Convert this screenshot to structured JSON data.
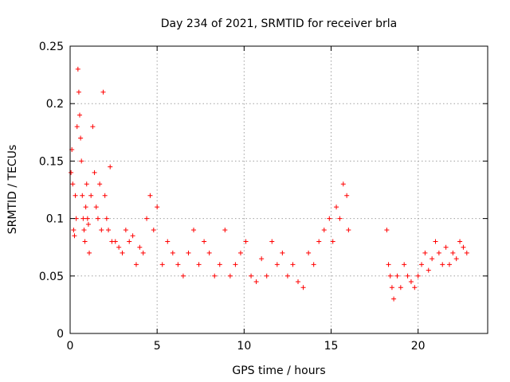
{
  "chart_data": {
    "type": "scatter",
    "title": "Day 234 of 2021, SRMTID for receiver brla",
    "xlabel": "GPS time / hours",
    "ylabel": "SRMTID / TECUs",
    "xlim": [
      0,
      24
    ],
    "ylim": [
      0,
      0.25
    ],
    "xticks": [
      "0",
      "5",
      "10",
      "15",
      "20"
    ],
    "yticks": [
      "0",
      "0.05",
      "0.1",
      "0.15",
      "0.2",
      "0.25"
    ],
    "grid": true,
    "legend": "none",
    "color": "#ff0000",
    "series": [
      {
        "x": [
          0.05,
          0.1,
          0.15,
          0.2,
          0.25,
          0.3,
          0.35,
          0.4,
          0.45,
          0.5,
          0.55,
          0.6,
          0.65,
          0.7,
          0.75,
          0.8,
          0.85,
          0.9,
          0.95,
          1.0,
          1.05,
          1.1,
          1.2,
          1.3,
          1.4,
          1.5,
          1.6,
          1.7,
          1.8,
          1.9,
          2.0,
          2.1,
          2.2,
          2.3,
          2.4,
          2.6,
          2.8,
          3.0,
          3.2,
          3.4,
          3.6,
          3.8,
          4.0,
          4.2,
          4.4,
          4.6,
          4.8,
          5.0,
          5.3,
          5.6,
          5.9,
          6.2,
          6.5,
          6.8,
          7.1,
          7.4,
          7.7,
          8.0,
          8.3,
          8.6,
          8.9,
          9.2,
          9.5,
          9.8,
          10.1,
          10.4,
          10.7,
          11.0,
          11.3,
          11.6,
          11.9,
          12.2,
          12.5,
          12.8,
          13.1,
          13.4,
          13.7,
          14.0,
          14.3,
          14.6,
          14.9,
          15.1,
          15.3,
          15.5,
          15.7,
          15.9,
          16.0,
          18.2,
          18.3,
          18.4,
          18.5,
          18.6,
          18.8,
          19.0,
          19.2,
          19.4,
          19.6,
          19.8,
          20.0,
          20.2,
          20.4,
          20.6,
          20.8,
          21.0,
          21.2,
          21.4,
          21.6,
          21.8,
          22.0,
          22.2,
          22.4,
          22.6,
          22.8
        ],
        "y": [
          0.14,
          0.16,
          0.13,
          0.09,
          0.085,
          0.12,
          0.1,
          0.18,
          0.23,
          0.21,
          0.19,
          0.17,
          0.15,
          0.12,
          0.1,
          0.09,
          0.08,
          0.11,
          0.13,
          0.1,
          0.095,
          0.07,
          0.12,
          0.18,
          0.14,
          0.11,
          0.1,
          0.13,
          0.09,
          0.21,
          0.12,
          0.1,
          0.09,
          0.145,
          0.08,
          0.08,
          0.075,
          0.07,
          0.09,
          0.08,
          0.085,
          0.06,
          0.075,
          0.07,
          0.1,
          0.12,
          0.09,
          0.11,
          0.06,
          0.08,
          0.07,
          0.06,
          0.05,
          0.07,
          0.09,
          0.06,
          0.08,
          0.07,
          0.05,
          0.06,
          0.09,
          0.05,
          0.06,
          0.07,
          0.08,
          0.05,
          0.045,
          0.065,
          0.05,
          0.08,
          0.06,
          0.07,
          0.05,
          0.06,
          0.045,
          0.04,
          0.07,
          0.06,
          0.08,
          0.09,
          0.1,
          0.08,
          0.11,
          0.1,
          0.13,
          0.12,
          0.09,
          0.09,
          0.06,
          0.05,
          0.04,
          0.03,
          0.05,
          0.04,
          0.06,
          0.05,
          0.045,
          0.04,
          0.05,
          0.06,
          0.07,
          0.055,
          0.065,
          0.08,
          0.07,
          0.06,
          0.075,
          0.06,
          0.07,
          0.065,
          0.08,
          0.075,
          0.07
        ]
      }
    ]
  }
}
